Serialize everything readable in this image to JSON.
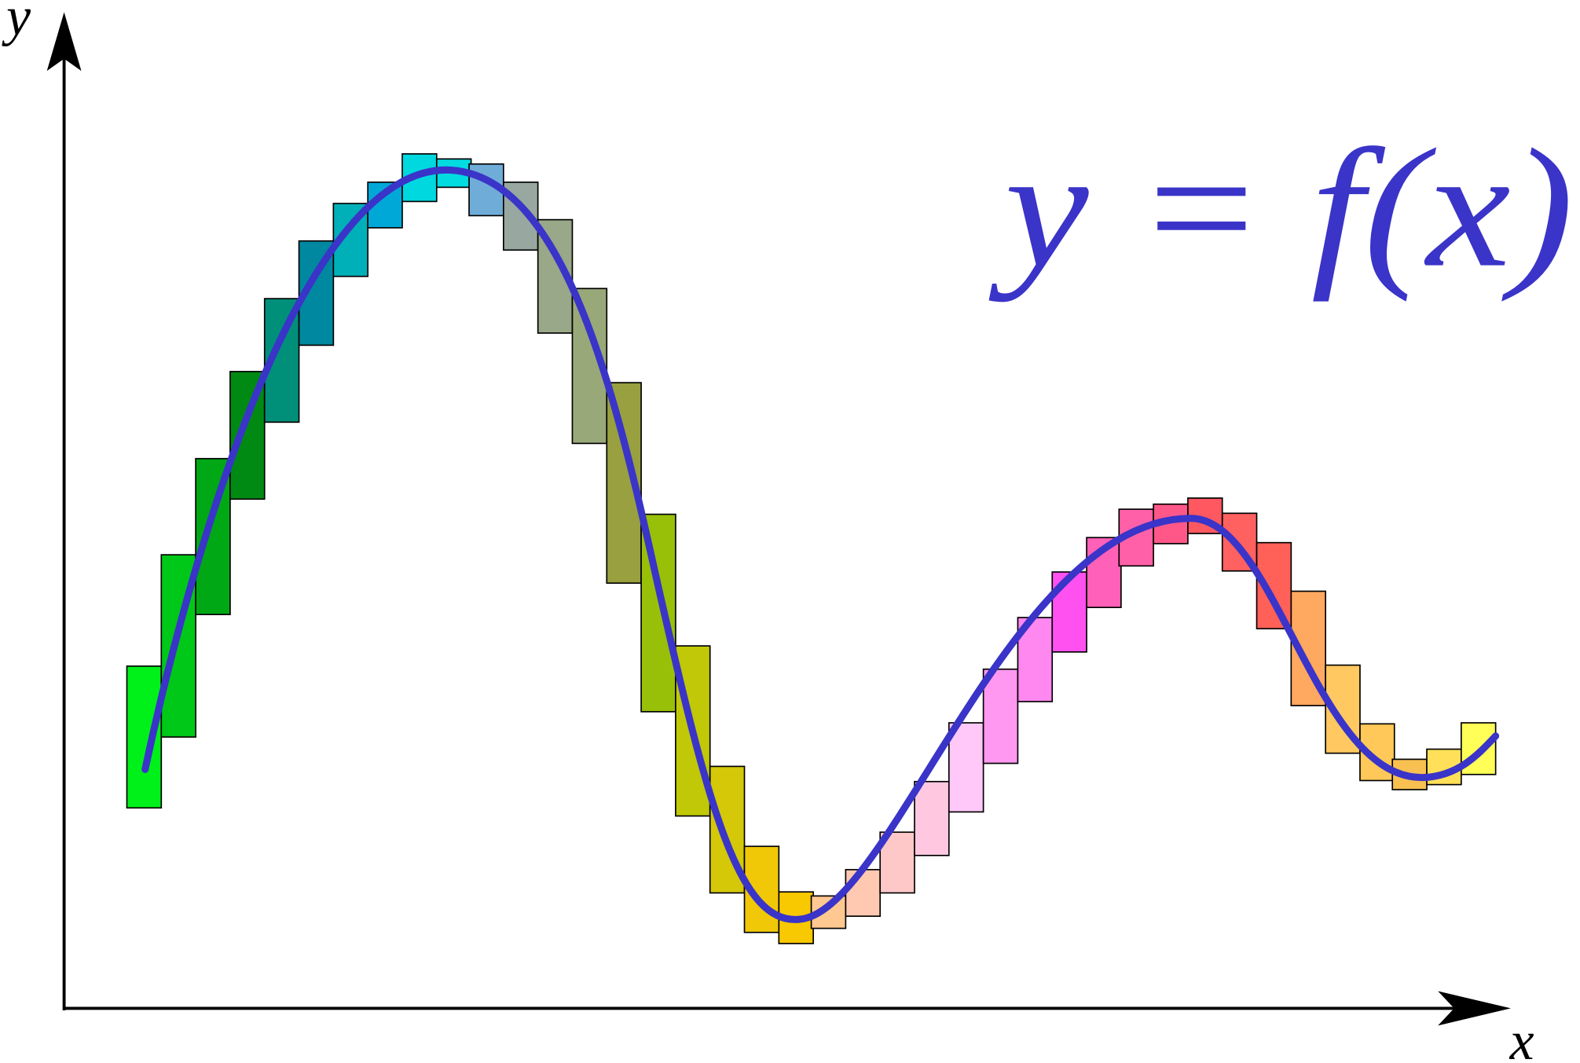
{
  "axes": {
    "y_label": "y",
    "x_label": "x"
  },
  "formula": "y = f(x)"
}
